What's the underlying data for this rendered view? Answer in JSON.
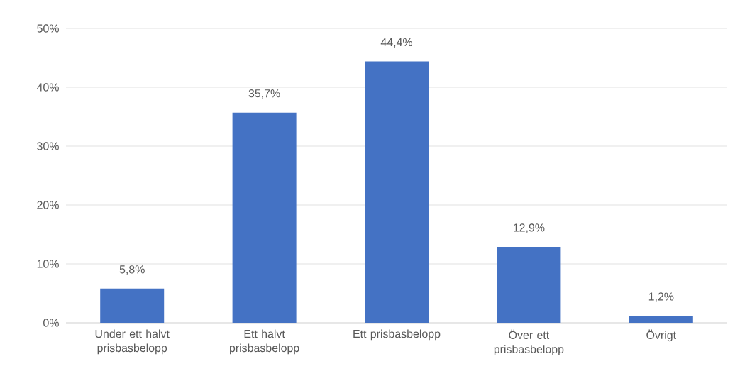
{
  "chart_data": {
    "type": "bar",
    "categories": [
      "Under ett halvt prisbasbelopp",
      "Ett halvt prisbasbelopp",
      "Ett prisbasbelopp",
      "Över ett prisbasbelopp",
      "Övrigt"
    ],
    "values": [
      5.8,
      35.7,
      44.4,
      12.9,
      1.2
    ],
    "value_labels": [
      "5,8%",
      "35,7%",
      "44,4%",
      "12,9%",
      "1,2%"
    ],
    "color": "#4472c4",
    "ylim": [
      0,
      50
    ],
    "yticks": [
      {
        "value": 0,
        "label": "0%"
      },
      {
        "value": 10,
        "label": "10%"
      },
      {
        "value": 20,
        "label": "20%"
      },
      {
        "value": 30,
        "label": "30%"
      },
      {
        "value": 40,
        "label": "40%"
      },
      {
        "value": 50,
        "label": "50%"
      }
    ],
    "grid": "y"
  }
}
